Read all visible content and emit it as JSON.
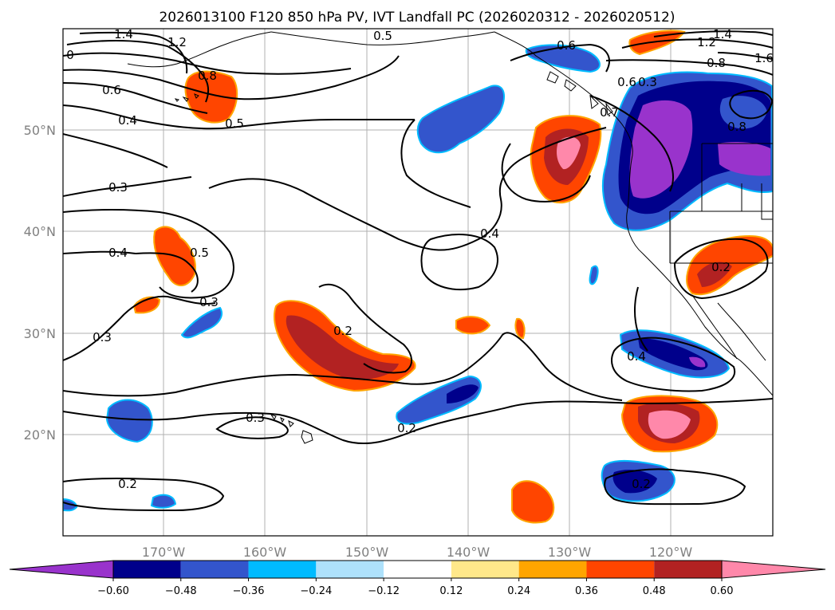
{
  "title": "2026013100 F120 850 hPa PV, IVT Landfall PC (2026020312 - 2026020512)",
  "lon_ticks": [
    "170°W",
    "160°W",
    "150°W",
    "140°W",
    "130°W",
    "120°W"
  ],
  "lat_ticks": [
    "50°N",
    "40°N",
    "30°N",
    "20°N"
  ],
  "colorbar": {
    "colors": [
      "#9933cc",
      "#00008b",
      "#3355cc",
      "#00bbff",
      "#aee1fb",
      "#ffffff",
      "#ffe88a",
      "#ffa500",
      "#ff4500",
      "#b22222",
      "#ff88aa"
    ],
    "tick_labels": [
      "−0.60",
      "−0.48",
      "−0.36",
      "−0.24",
      "−0.12",
      "0.12",
      "0.24",
      "0.36",
      "0.48",
      "0.60"
    ]
  },
  "contour_labels": [
    "1.4",
    "1.2",
    "0",
    "0.8",
    "0.6",
    "0.4",
    "0.5",
    "0.3",
    "0.4",
    "0.5",
    "0.3",
    "0.3",
    "0.2",
    "0.3",
    "0.2",
    "0.2",
    "0.4",
    "0.6",
    "1.2",
    "1.4",
    "0.8",
    "1.6",
    "0.6",
    "0.7",
    "0.8",
    "0.2",
    "0.4",
    "0.2",
    "0.3",
    "0.5"
  ],
  "positive_color": "#ff4500",
  "negative_color": "#3355cc"
}
